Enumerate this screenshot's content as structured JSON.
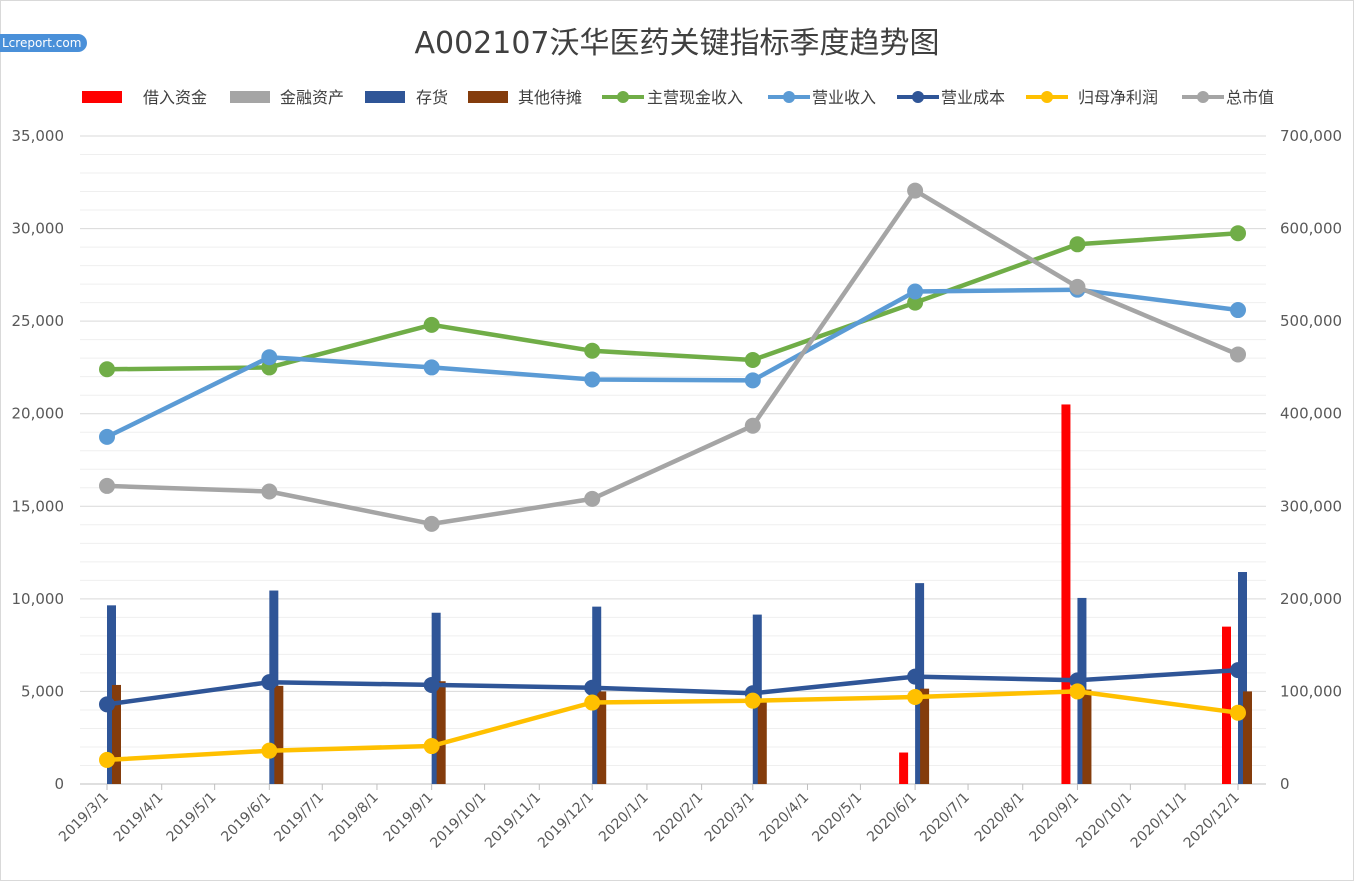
{
  "watermark": "Lcreport.com",
  "chart_data": {
    "type": "bar+line",
    "title": "A002107沃华医药关键指标季度趋势图",
    "legend_position": "top",
    "grid": true,
    "x_ticks": [
      "2019/3/1",
      "2019/4/1",
      "2019/5/1",
      "2019/6/1",
      "2019/7/1",
      "2019/8/1",
      "2019/9/1",
      "2019/10/1",
      "2019/11/1",
      "2019/12/1",
      "2020/1/1",
      "2020/2/1",
      "2020/3/1",
      "2020/4/1",
      "2020/5/1",
      "2020/6/1",
      "2020/7/1",
      "2020/8/1",
      "2020/9/1",
      "2020/10/1",
      "2020/11/1",
      "2020/12/1"
    ],
    "dates": [
      "2019/3/1",
      "2019/6/1",
      "2019/9/1",
      "2019/12/1",
      "2020/3/1",
      "2020/6/1",
      "2020/9/1",
      "2020/12/1"
    ],
    "y_left": {
      "min": 0,
      "max": 35000,
      "ticks": [
        "0",
        "5,000",
        "10,000",
        "15,000",
        "20,000",
        "25,000",
        "30,000",
        "35,000"
      ]
    },
    "y_right": {
      "min": 0,
      "max": 700000,
      "ticks": [
        "0",
        "100,000",
        "200,000",
        "300,000",
        "400,000",
        "500,000",
        "600,000",
        "700,000"
      ]
    },
    "bar_series": [
      {
        "name": "借入资金",
        "color": "#ff0000",
        "values": [
          0,
          0,
          0,
          0,
          0,
          1700,
          20500,
          8500
        ]
      },
      {
        "name": "金融资产",
        "color": "#a5a5a5",
        "values": [
          0,
          0,
          0,
          0,
          0,
          0,
          0,
          0
        ]
      },
      {
        "name": "存货",
        "color": "#2f5597",
        "values": [
          9650,
          10450,
          9250,
          9580,
          9150,
          10850,
          10050,
          11450
        ]
      },
      {
        "name": "其他待摊",
        "color": "#843c0c",
        "values": [
          5350,
          5300,
          5550,
          5000,
          4600,
          5150,
          5100,
          5000
        ]
      }
    ],
    "line_series": [
      {
        "name": "主营现金收入",
        "color": "#70ad47",
        "axis": "left",
        "values": [
          22400,
          22500,
          24800,
          23400,
          22900,
          26000,
          29150,
          29750
        ]
      },
      {
        "name": "营业收入",
        "color": "#5b9bd5",
        "axis": "left",
        "values": [
          18750,
          23050,
          22500,
          21850,
          21800,
          26600,
          26700,
          25600
        ]
      },
      {
        "name": "营业成本",
        "color": "#2f5597",
        "axis": "left",
        "values": [
          4300,
          5500,
          5350,
          5200,
          4900,
          5800,
          5600,
          6150
        ]
      },
      {
        "name": "归母净利润",
        "color": "#ffc000",
        "axis": "left",
        "values": [
          1300,
          1800,
          2050,
          4400,
          4500,
          4700,
          5000,
          3850
        ]
      },
      {
        "name": "总市值",
        "color": "#a5a5a5",
        "axis": "right",
        "values": [
          322000,
          316000,
          281000,
          308000,
          387000,
          641000,
          537000,
          464000
        ]
      }
    ]
  }
}
